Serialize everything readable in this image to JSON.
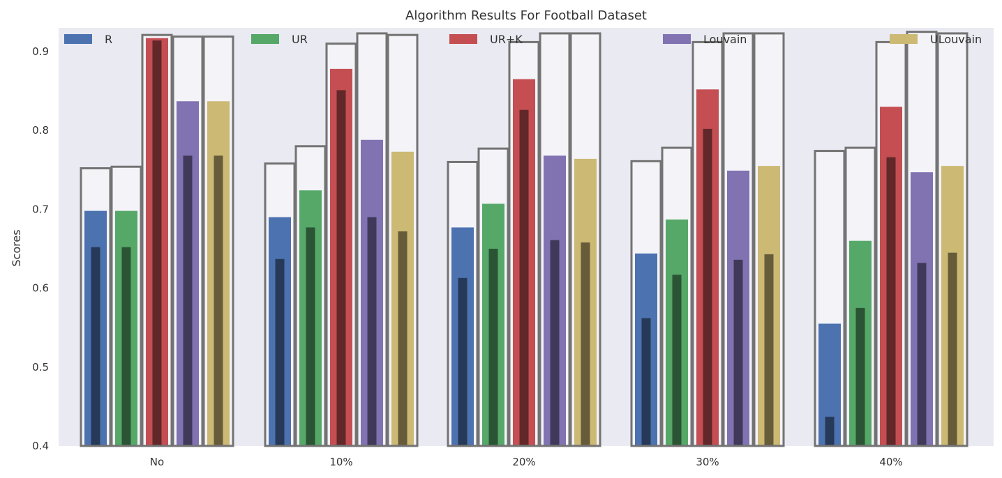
{
  "chart_data": {
    "type": "bar",
    "title": "Algorithm Results For Football Dataset",
    "xlabel": "",
    "ylabel": "Scores",
    "categories": [
      "No",
      "10%",
      "20%",
      "30%",
      "40%"
    ],
    "ylim": [
      0.4,
      0.93
    ],
    "yticks": [
      "0.4",
      "0.5",
      "0.6",
      "0.7",
      "0.8",
      "0.9"
    ],
    "grid": false,
    "legend_position": "top",
    "background": "#eaeaf2",
    "series": [
      {
        "name": "R",
        "color": "#4c72b0",
        "outline": [
          0.752,
          0.758,
          0.76,
          0.761,
          0.774
        ],
        "values": [
          0.698,
          0.69,
          0.677,
          0.644,
          0.555
        ],
        "inner": [
          0.652,
          0.637,
          0.613,
          0.562,
          0.437
        ]
      },
      {
        "name": "UR",
        "color": "#55a868",
        "outline": [
          0.754,
          0.78,
          0.777,
          0.778,
          0.778
        ],
        "values": [
          0.698,
          0.724,
          0.707,
          0.687,
          0.66
        ],
        "inner": [
          0.652,
          0.677,
          0.65,
          0.617,
          0.575
        ]
      },
      {
        "name": "UR+K",
        "color": "#c44e52",
        "outline": [
          0.921,
          0.91,
          0.912,
          0.912,
          0.912
        ],
        "values": [
          0.917,
          0.878,
          0.865,
          0.852,
          0.83
        ],
        "inner": [
          0.914,
          0.851,
          0.826,
          0.802,
          0.766
        ]
      },
      {
        "name": "Louvain",
        "color": "#8172b2",
        "outline": [
          0.919,
          0.923,
          0.923,
          0.923,
          0.925
        ],
        "values": [
          0.837,
          0.788,
          0.768,
          0.749,
          0.747
        ],
        "inner": [
          0.768,
          0.69,
          0.661,
          0.636,
          0.632
        ]
      },
      {
        "name": "ULouvain",
        "color": "#ccb974",
        "outline": [
          0.919,
          0.921,
          0.923,
          0.923,
          0.923
        ],
        "values": [
          0.837,
          0.773,
          0.764,
          0.755,
          0.755
        ],
        "inner": [
          0.768,
          0.672,
          0.658,
          0.643,
          0.645
        ]
      }
    ]
  }
}
